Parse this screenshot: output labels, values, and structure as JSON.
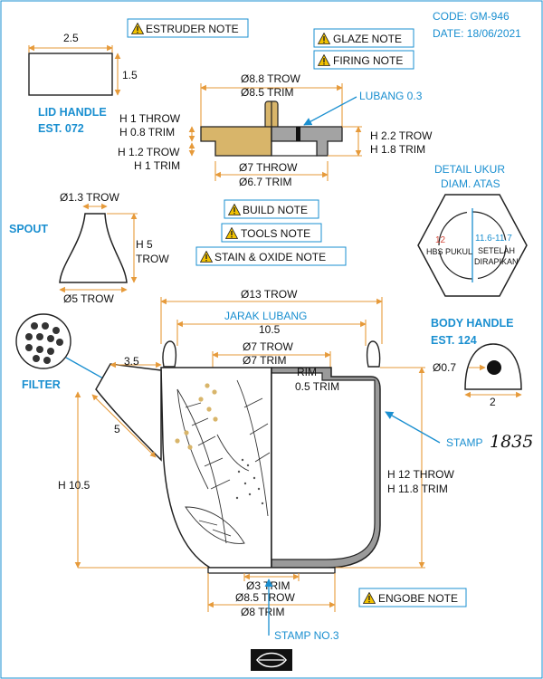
{
  "header": {
    "code": "CODE: GM-946",
    "date": "DATE: 18/06/2021"
  },
  "notes": {
    "estruder": "ESTRUDER NOTE",
    "glaze": "GLAZE NOTE",
    "firing": "FIRING NOTE",
    "build": "BUILD NOTE",
    "tools": "TOOLS NOTE",
    "stain": "STAIN & OXIDE NOTE",
    "engobe": "ENGOBE NOTE"
  },
  "lid_handle": {
    "title1": "LID HANDLE",
    "title2": "EST. 072",
    "width": "2.5",
    "height": "1.5"
  },
  "lid": {
    "top1": "Ø8.8 TROW",
    "top2": "Ø8.5 TRIM",
    "lubang": "LUBANG 0.3",
    "left_a1": "H 1 THROW",
    "left_a2": "H 0.8 TRIM",
    "left_b1": "H 1.2 TROW",
    "left_b2": "H 1 TRIM",
    "right1": "H 2.2 TROW",
    "right2": "H 1.8 TRIM",
    "bottom1": "Ø7 THROW",
    "bottom2": "Ø6.7 TRIM"
  },
  "detail": {
    "title1": "DETAIL UKUR",
    "title2": "DIAM. ATAS",
    "left_num": "12",
    "left_lbl": "HBS PUKUL",
    "right_num": "11.6-11.7",
    "right_lbl1": "SETELAH",
    "right_lbl2": "DIRAPIKAN"
  },
  "spout": {
    "title": "SPOUT",
    "top": "Ø1.3 TROW",
    "h1": "H 5",
    "h2": "TROW",
    "bottom": "Ø5 TROW"
  },
  "body_handle": {
    "title1": "BODY HANDLE",
    "title2": "EST. 124",
    "dia": "Ø0.7",
    "width": "2"
  },
  "filter": {
    "title": "FILTER"
  },
  "body": {
    "top": "Ø13 TROW",
    "jarak1": "JARAK LUBANG",
    "jarak2": "10.5",
    "inner1": "Ø7 TROW",
    "inner2": "Ø7 TRIM",
    "spout_len": "3.5",
    "spout_diag": "5",
    "rim1": "RIM",
    "rim2": "0.5 TRIM",
    "height_left": "H 10.5",
    "right1": "H 12 THROW",
    "right2": "H 11.8 TRIM",
    "stamp": "STAMP",
    "stamp_mark": "1835",
    "base_inner": "Ø3 TRIM",
    "base1": "Ø8.5 TROW",
    "base2": "Ø8 TRIM",
    "stamp_no": "STAMP NO.3"
  },
  "colors": {
    "accent": "#1a8fd0",
    "dimension": "#e69a3a",
    "wood": "#d8b56a",
    "gray": "#9a9a9a"
  }
}
